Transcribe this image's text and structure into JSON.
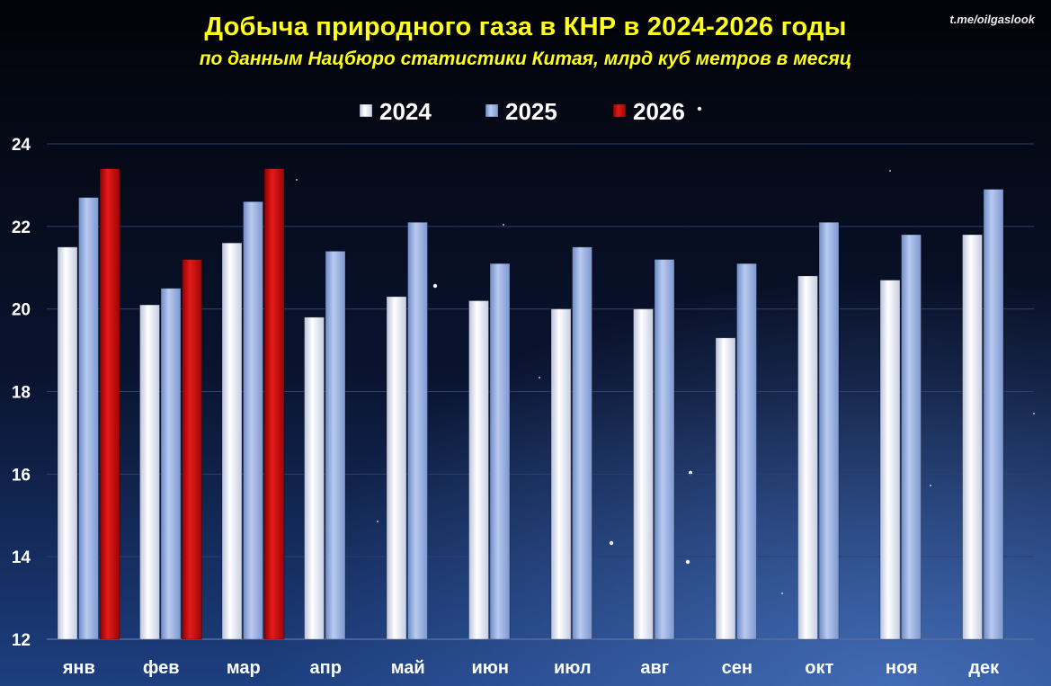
{
  "header": {
    "title": "Добыча природного газа в КНР в 2024-2026 годы",
    "subtitle": "по данным Нацбюро статистики Китая, млрд куб метров в месяц",
    "watermark": "t.me/oilgaslook"
  },
  "colors": {
    "background_top": "#05081a",
    "background_bottom": "#1a3c7a",
    "series_2024": "#e4e8f6",
    "series_2025": "#9db4e3",
    "series_2026": "#cc1010",
    "title": "#ffff1a",
    "axis_text": "#ffffff",
    "grid": "#2d3f73"
  },
  "chart_data": {
    "type": "bar",
    "title": "Добыча природного газа в КНР в 2024-2026 годы",
    "subtitle": "по данным Нацбюро статистики Китая, млрд куб метров в месяц",
    "categories": [
      "янв",
      "фев",
      "мар",
      "апр",
      "май",
      "июн",
      "июл",
      "авг",
      "сен",
      "окт",
      "ноя",
      "дек"
    ],
    "series": [
      {
        "name": "2024",
        "color": "#e4e8f6",
        "values": [
          21.5,
          20.1,
          21.6,
          19.8,
          20.3,
          20.2,
          20.0,
          20.0,
          19.3,
          20.8,
          20.7,
          21.8
        ]
      },
      {
        "name": "2025",
        "color": "#9db4e3",
        "values": [
          22.7,
          20.5,
          22.6,
          21.4,
          22.1,
          21.1,
          21.5,
          21.2,
          21.1,
          22.1,
          21.8,
          22.9
        ]
      },
      {
        "name": "2026",
        "color": "#cc1010",
        "values": [
          23.4,
          21.2,
          23.4,
          null,
          null,
          null,
          null,
          null,
          null,
          null,
          null,
          null
        ]
      }
    ],
    "yticks": [
      12,
      14,
      16,
      18,
      20,
      22,
      24
    ],
    "ylim": [
      12,
      24
    ],
    "grid": true,
    "legend_position": "top-center"
  }
}
